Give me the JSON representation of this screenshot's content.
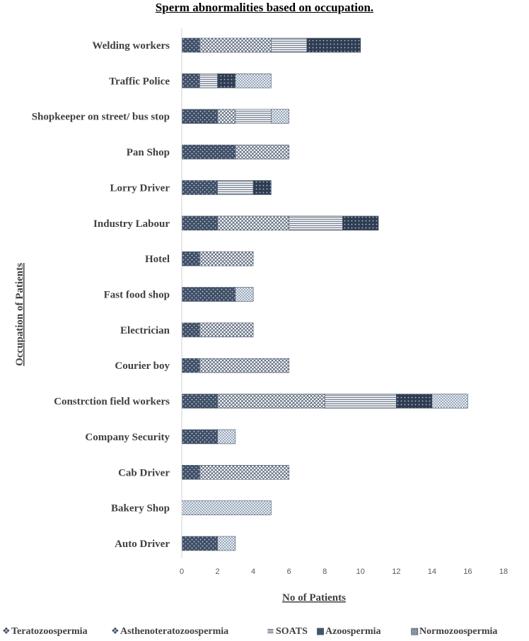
{
  "chart_data": {
    "type": "bar",
    "orientation": "horizontal",
    "stacked": true,
    "title": "Sperm abnormalities based on occupation.",
    "xlabel": "No of Patients",
    "ylabel": "Occupation of Patients",
    "xlim": [
      0,
      18
    ],
    "xticks": [
      0,
      2,
      4,
      6,
      8,
      10,
      12,
      14,
      16,
      18
    ],
    "grid": false,
    "legend_position": "bottom",
    "categories": [
      "Auto Driver",
      "Bakery Shop",
      "Cab Driver",
      "Company Security",
      "Constrction field workers",
      "Courier boy",
      "Electrician",
      "Fast food shop",
      "Hotel",
      "Industry Labour",
      "Lorry Driver",
      "Pan Shop",
      "Shopkeeper on street/ bus stop",
      "Traffic Police",
      "Welding workers"
    ],
    "series": [
      {
        "name": "Teratozoospermia",
        "values": [
          2,
          0,
          1,
          2,
          2,
          1,
          1,
          3,
          1,
          2,
          2,
          3,
          2,
          1,
          1
        ]
      },
      {
        "name": "Asthenoteratozoospermia",
        "values": [
          0,
          0,
          5,
          0,
          6,
          5,
          3,
          0,
          3,
          4,
          0,
          3,
          1,
          0,
          4
        ]
      },
      {
        "name": "SOATS",
        "values": [
          0,
          0,
          0,
          0,
          4,
          0,
          0,
          0,
          0,
          3,
          2,
          0,
          2,
          1,
          2
        ]
      },
      {
        "name": "Azoospermia",
        "values": [
          0,
          0,
          0,
          0,
          2,
          0,
          0,
          0,
          0,
          2,
          1,
          0,
          0,
          1,
          3
        ]
      },
      {
        "name": "Normozoospermia",
        "values": [
          1,
          5,
          0,
          1,
          2,
          0,
          0,
          1,
          0,
          0,
          0,
          0,
          1,
          2,
          0
        ]
      }
    ],
    "colors": {
      "Teratozoospermia": "#44546a",
      "Asthenoteratozoospermia": "#44546a",
      "SOATS": "#44546a",
      "Azoospermia": "#44546a",
      "Normozoospermia": "#8497b0"
    },
    "legend_markers": [
      "❖",
      "❖",
      "≡",
      "■",
      "▩"
    ]
  }
}
